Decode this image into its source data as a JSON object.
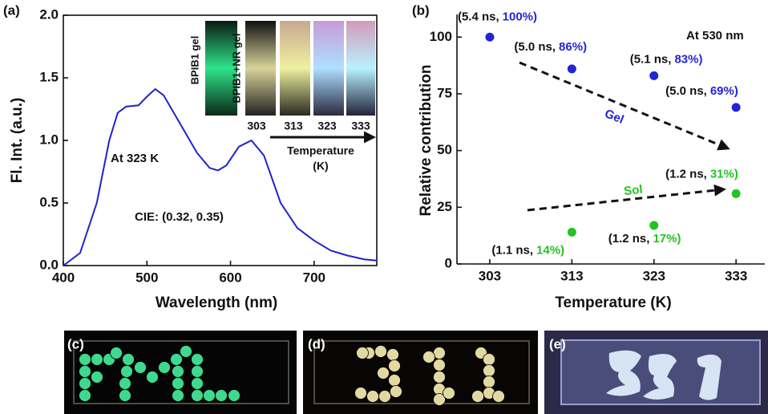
{
  "chart_data": [
    {
      "type": "line",
      "panel_label": "(a)",
      "x_label": "Wavelength (nm)",
      "y_label": "Fl. Int. (a.u.)",
      "annotations": [
        "At 323 K",
        "CIE: (0.32, 0.35)"
      ],
      "inset": {
        "sample_labels": [
          "BPIB1 gel",
          "BPIB1+NR gel"
        ],
        "temperatures": [
          "303",
          "313",
          "323",
          "333"
        ],
        "arrow_label": "Temperature",
        "unit_label": "(K)"
      },
      "x": [
        400,
        420,
        440,
        455,
        465,
        475,
        490,
        500,
        510,
        520,
        540,
        560,
        575,
        585,
        595,
        610,
        625,
        640,
        660,
        680,
        700,
        720,
        740,
        760,
        775
      ],
      "values": [
        0.0,
        0.1,
        0.5,
        1.0,
        1.22,
        1.27,
        1.28,
        1.35,
        1.41,
        1.36,
        1.13,
        0.9,
        0.78,
        0.76,
        0.8,
        0.95,
        1.0,
        0.88,
        0.5,
        0.3,
        0.2,
        0.12,
        0.08,
        0.05,
        0.04
      ],
      "color": "#2222cc",
      "xlim": [
        400,
        775
      ],
      "xticks": [
        400,
        500,
        600,
        700
      ],
      "ylim": [
        0,
        2.0
      ],
      "yticks": [
        {
          "value": 0,
          "label": "0.0"
        },
        {
          "value": 0.5,
          "label": "0.5"
        },
        {
          "value": 1.0,
          "label": "1.0"
        },
        {
          "value": 1.5,
          "label": "1.5"
        },
        {
          "value": 2.0,
          "label": "2.0"
        }
      ]
    },
    {
      "type": "scatter",
      "panel_label": "(b)",
      "x_label": "Temperature (K)",
      "y_label": "Relative contribution",
      "annotations": [
        "At 530 nm"
      ],
      "x": [
        303,
        313,
        323,
        333
      ],
      "series": [
        {
          "name": "Gel",
          "color": "#2323d8",
          "values": [
            100,
            86,
            83,
            69
          ],
          "lifetime_labels": [
            "(5.4 ns,",
            "(5.0 ns,",
            "(5.1 ns,",
            "(5.0 ns,"
          ],
          "value_labels": [
            "100%)",
            "86%)",
            "83%)",
            "69%)"
          ]
        },
        {
          "name": "Sol",
          "color": "#22c422",
          "values": [
            null,
            14,
            17,
            31
          ],
          "lifetime_labels": [
            null,
            "(1.1 ns,",
            "(1.2 ns,",
            "(1.2 ns,"
          ],
          "value_labels": [
            null,
            "14%)",
            "17%)",
            "31%)"
          ]
        }
      ],
      "xlim": [
        299,
        336.5
      ],
      "xticks": [
        303,
        313,
        323,
        333
      ],
      "ylim": [
        0,
        110
      ],
      "yticks": [
        0,
        25,
        50,
        75,
        100
      ]
    }
  ],
  "photos": {
    "labels": [
      "(c)",
      "(d)",
      "(e)"
    ]
  }
}
